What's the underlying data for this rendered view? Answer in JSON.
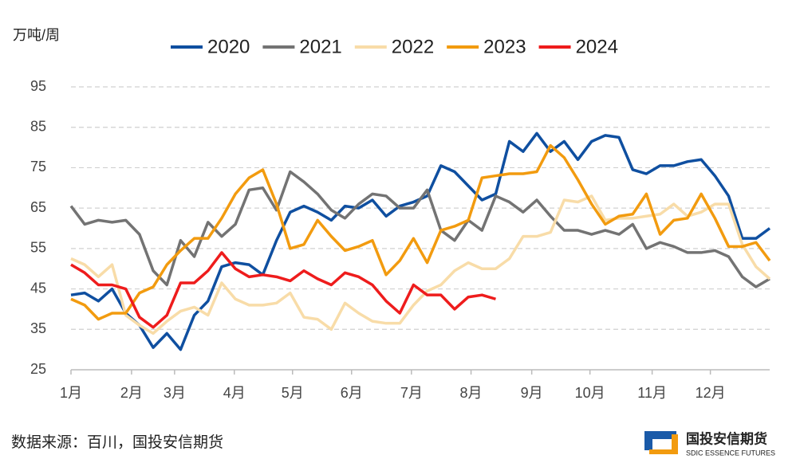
{
  "chart_data": {
    "type": "line",
    "y_label": "万吨/周",
    "x": [
      1,
      2,
      3,
      4,
      5,
      6,
      7,
      8,
      9,
      10,
      11,
      12,
      13,
      14,
      15,
      16,
      17,
      18,
      19,
      20,
      21,
      22,
      23,
      24,
      25,
      26,
      27,
      28,
      29,
      30,
      31,
      32,
      33,
      34,
      35,
      36,
      37,
      38,
      39,
      40,
      41,
      42,
      43,
      44,
      45,
      46,
      47,
      48,
      49,
      50,
      51,
      52
    ],
    "xlim": [
      1,
      52
    ],
    "xticks": [
      {
        "value": 1,
        "label": "1月"
      },
      {
        "value": 5.42,
        "label": "2月"
      },
      {
        "value": 8.56,
        "label": "3月"
      },
      {
        "value": 12.92,
        "label": "4月"
      },
      {
        "value": 17.17,
        "label": "5月"
      },
      {
        "value": 21.48,
        "label": "6月"
      },
      {
        "value": 25.85,
        "label": "7月"
      },
      {
        "value": 30.2,
        "label": "8月"
      },
      {
        "value": 34.63,
        "label": "9月"
      },
      {
        "value": 38.88,
        "label": "10月"
      },
      {
        "value": 43.42,
        "label": "11月"
      },
      {
        "value": 47.67,
        "label": "12月"
      }
    ],
    "ylim": [
      25,
      95
    ],
    "yticks": [
      25,
      35,
      45,
      55,
      65,
      75,
      85,
      95
    ],
    "grid": true,
    "series": [
      {
        "name": "2020",
        "color": "#0f4fa0",
        "values": [
          43.5,
          44,
          42,
          45,
          39,
          36,
          30.5,
          34,
          30,
          38.5,
          42,
          50.5,
          51.5,
          51,
          48.5,
          57,
          64,
          65.5,
          64,
          62,
          65.5,
          65,
          67,
          63,
          65.5,
          66.5,
          68,
          75.5,
          74,
          70.5,
          67,
          68.5,
          81.5,
          79,
          83.5,
          79,
          81.5,
          77,
          81.5,
          83,
          82.5,
          74.5,
          73.5,
          75.5,
          75.5,
          76.5,
          77,
          73,
          68,
          57.5,
          57.5,
          60
        ]
      },
      {
        "name": "2021",
        "color": "#737373",
        "values": [
          65.5,
          61,
          62,
          61.5,
          62,
          58.5,
          49.5,
          46,
          57,
          53,
          61.5,
          58,
          61,
          69.5,
          70,
          64.5,
          74,
          71.5,
          68.5,
          64.5,
          62.5,
          66,
          68.5,
          68,
          65,
          65,
          69.5,
          59.5,
          57,
          62,
          59.5,
          68,
          66.5,
          64,
          67,
          63,
          59.5,
          59.5,
          58.5,
          59.5,
          58.5,
          61,
          55,
          56.5,
          55.5,
          54,
          54,
          54.5,
          53,
          48,
          45.5,
          47.5
        ]
      },
      {
        "name": "2022",
        "color": "#f8dca8",
        "values": [
          52.5,
          51,
          48,
          51,
          38.5,
          36,
          34,
          37,
          39.5,
          40.5,
          38.5,
          46.5,
          42.5,
          41,
          41,
          41.5,
          44,
          38,
          37.5,
          35,
          41.5,
          39,
          37,
          36.5,
          36.5,
          41,
          44.5,
          46,
          49.5,
          51.5,
          50,
          50,
          52.5,
          58,
          58,
          59,
          67,
          66.5,
          68,
          62,
          62.5,
          62.5,
          63,
          63.5,
          66,
          63,
          64,
          66,
          66,
          56,
          50.5,
          47.5
        ]
      },
      {
        "name": "2023",
        "color": "#f29b0f",
        "values": [
          42.5,
          41,
          37.5,
          39,
          39,
          44,
          45.5,
          51,
          54.5,
          57.5,
          57.5,
          62.5,
          68.5,
          72.5,
          74.5,
          66,
          55,
          56,
          62,
          58,
          54.5,
          55.5,
          57,
          48.5,
          52,
          57.5,
          51.5,
          59.5,
          60.5,
          62,
          72.5,
          73,
          73.5,
          73.5,
          74,
          80.5,
          77.5,
          72,
          66,
          61,
          63,
          63.5,
          68.5,
          58.5,
          62,
          62.5,
          68.5,
          62.5,
          55.5,
          55.5,
          56.5,
          52
        ]
      },
      {
        "name": "2024",
        "color": "#ee1c1c",
        "values": [
          51,
          49,
          46,
          46,
          45,
          38,
          35.5,
          38.5,
          46.5,
          46.5,
          49.5,
          54,
          50,
          48,
          48.5,
          48,
          47,
          49.5,
          47.5,
          46,
          49,
          48,
          46,
          42,
          39,
          46,
          43.5,
          43.5,
          40,
          43,
          43.5,
          42.5,
          null,
          null,
          null,
          null,
          null,
          null,
          null,
          null,
          null,
          null,
          null,
          null,
          null,
          null,
          null,
          null,
          null,
          null,
          null,
          null
        ]
      }
    ]
  },
  "footer": {
    "source": "数据来源：百川，国投安信期货",
    "logo_name": "国投安信期货",
    "logo_subtitle": "SDIC ESSENCE FUTURES"
  }
}
